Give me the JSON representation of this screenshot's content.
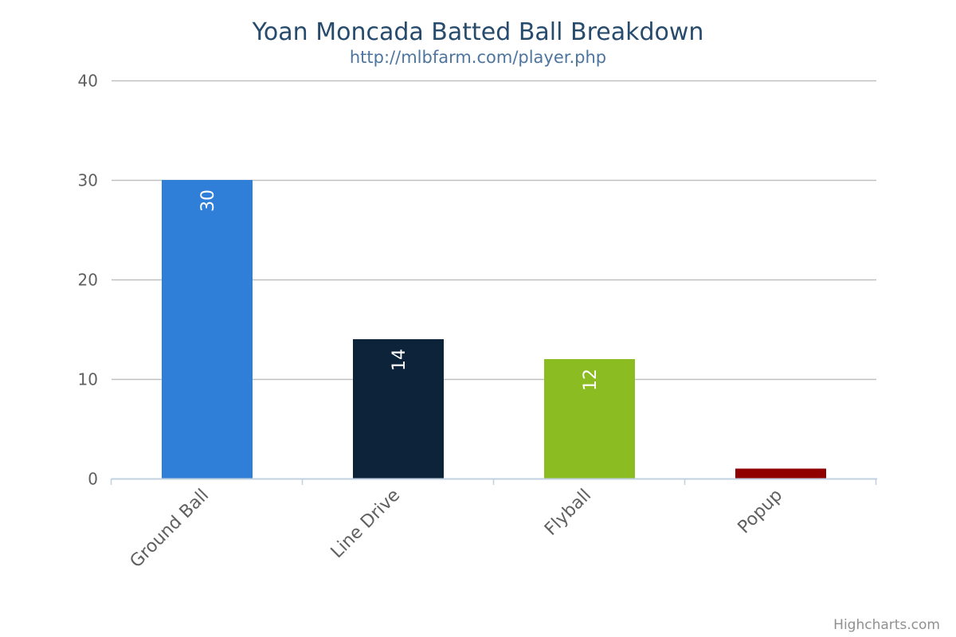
{
  "chart_data": {
    "type": "bar",
    "title": "Yoan Moncada Batted Ball Breakdown",
    "subtitle": "http://mlbfarm.com/player.php",
    "categories": [
      "Ground Ball",
      "Line Drive",
      "Flyball",
      "Popup"
    ],
    "values": [
      30,
      14,
      12,
      1
    ],
    "data_labels": [
      "30",
      "14",
      "12",
      ""
    ],
    "colors": [
      "#2f7ed8",
      "#0d233a",
      "#8bbc21",
      "#910000"
    ],
    "xlabel": "",
    "ylabel": "",
    "ylim": [
      0,
      40
    ],
    "yticks": [
      "0",
      "10",
      "20",
      "30",
      "40"
    ],
    "grid": true,
    "legend": "none"
  },
  "credits": "Highcharts.com"
}
